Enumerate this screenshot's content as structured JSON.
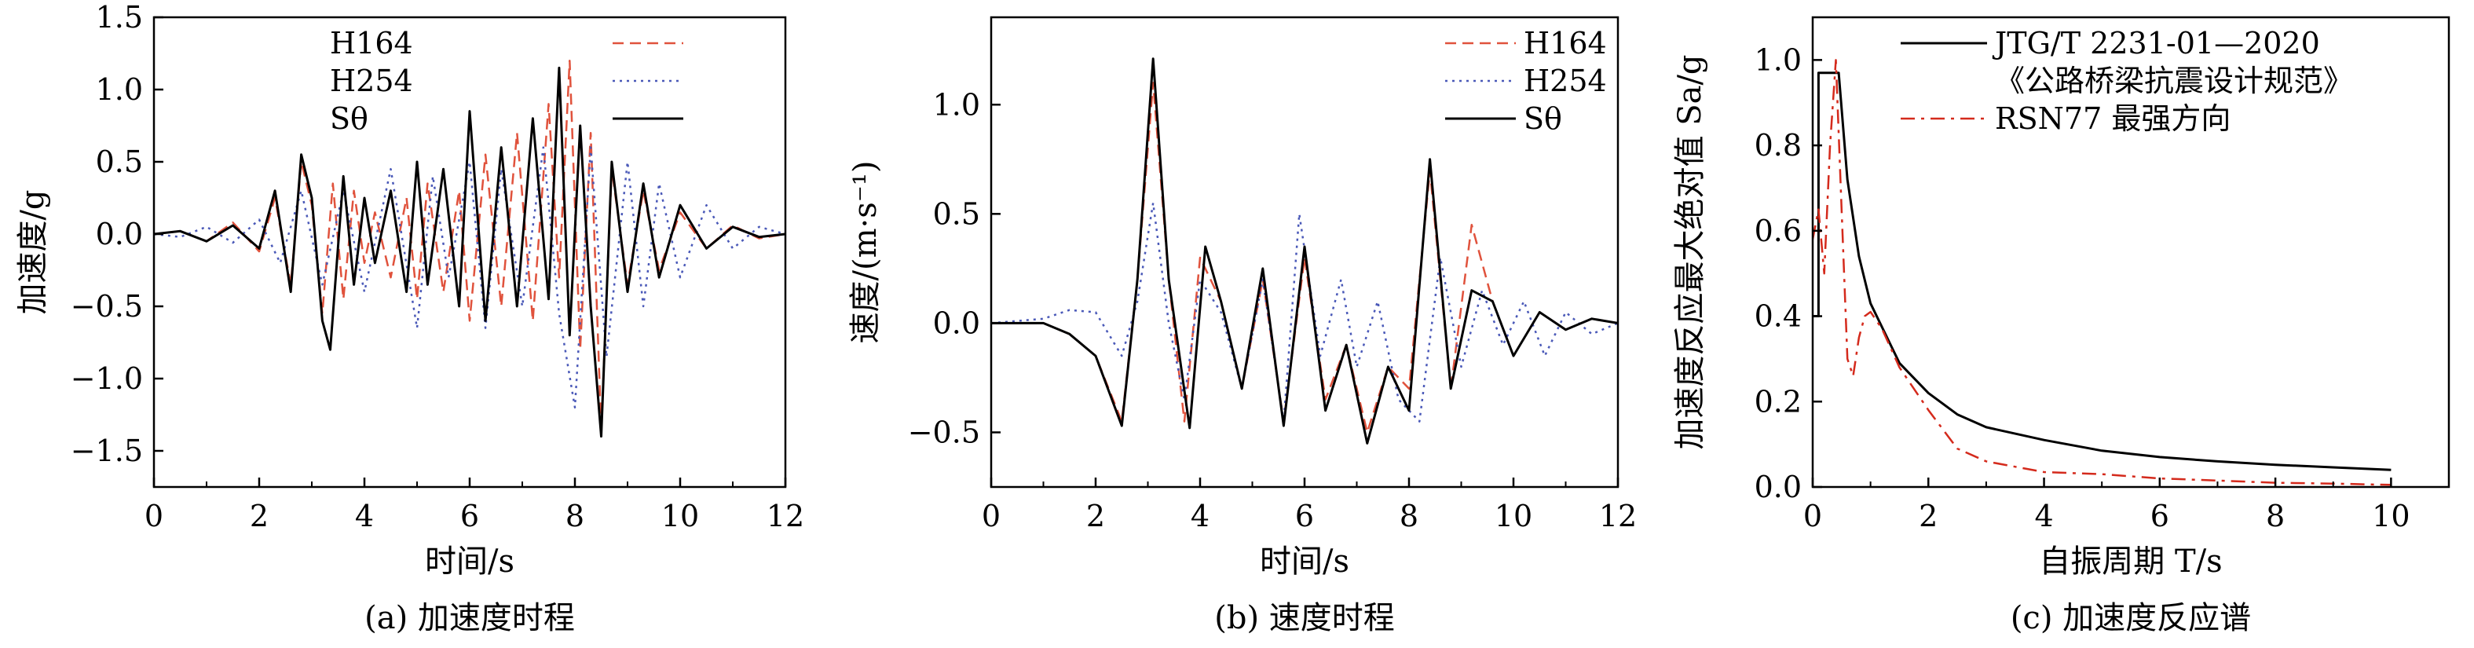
{
  "colors": {
    "h164": "#e0523c",
    "h254": "#4a59b8",
    "s": "#000000",
    "rsn77": "#d42a1c",
    "code": "#000000"
  },
  "chart_data": [
    {
      "type": "line",
      "caption": "(a) 加速度时程",
      "xlabel": "时间/s",
      "ylabel": "加速度/g",
      "xlim": [
        0,
        12
      ],
      "ylim": [
        -1.75,
        1.5
      ],
      "xticks": [
        0,
        2,
        4,
        6,
        8,
        10,
        12
      ],
      "yticks": [
        -1.5,
        -1.0,
        -0.5,
        0.0,
        0.5,
        1.0,
        1.5
      ],
      "ytick_labels": [
        "−1.5",
        "−1.0",
        "−0.5",
        "0.0",
        "0.5",
        "1.0",
        "1.5"
      ],
      "grid": false,
      "legend": "top-right",
      "series": [
        {
          "name": "H164",
          "style": "dashed",
          "color": "#e0523c",
          "x": [
            0,
            0.5,
            1.0,
            1.5,
            2.0,
            2.3,
            2.6,
            2.8,
            3.0,
            3.2,
            3.4,
            3.6,
            3.8,
            4.0,
            4.2,
            4.5,
            4.8,
            5.0,
            5.2,
            5.5,
            5.8,
            6.0,
            6.3,
            6.6,
            6.9,
            7.2,
            7.5,
            7.7,
            7.9,
            8.1,
            8.3,
            8.5,
            8.7,
            9.0,
            9.3,
            9.6,
            10.0,
            10.5,
            11.0,
            11.5,
            12.0
          ],
          "y": [
            0,
            0.02,
            -0.05,
            0.08,
            -0.12,
            0.25,
            -0.35,
            0.5,
            0.2,
            -0.55,
            0.35,
            -0.45,
            0.3,
            -0.2,
            0.15,
            -0.3,
            0.25,
            -0.45,
            0.35,
            -0.4,
            0.3,
            -0.6,
            0.55,
            -0.5,
            0.7,
            -0.6,
            0.9,
            -0.3,
            1.2,
            -0.8,
            0.7,
            -1.35,
            0.45,
            -0.35,
            0.3,
            -0.25,
            0.15,
            -0.1,
            0.06,
            -0.03,
            0
          ]
        },
        {
          "name": "H254",
          "style": "dotted",
          "color": "#4a59b8",
          "x": [
            0,
            0.5,
            1.0,
            1.5,
            2.0,
            2.4,
            2.8,
            3.2,
            3.6,
            4.0,
            4.5,
            5.0,
            5.3,
            5.6,
            6.0,
            6.3,
            6.6,
            7.0,
            7.4,
            7.7,
            8.0,
            8.3,
            8.6,
            9.0,
            9.3,
            9.6,
            10.0,
            10.5,
            11.0,
            11.5,
            12.0
          ],
          "y": [
            0,
            -0.02,
            0.05,
            -0.06,
            0.1,
            -0.2,
            0.3,
            -0.35,
            0.3,
            -0.4,
            0.45,
            -0.65,
            0.4,
            -0.3,
            0.5,
            -0.65,
            0.45,
            -0.5,
            0.6,
            -0.55,
            -1.2,
            0.6,
            -0.85,
            0.5,
            -0.5,
            0.35,
            -0.3,
            0.2,
            -0.1,
            0.05,
            0
          ]
        },
        {
          "name": "Sθ",
          "style": "solid",
          "color": "#000000",
          "x": [
            0,
            0.5,
            1.0,
            1.5,
            2.0,
            2.3,
            2.6,
            2.8,
            3.0,
            3.2,
            3.35,
            3.6,
            3.8,
            4.0,
            4.2,
            4.5,
            4.8,
            5.0,
            5.2,
            5.5,
            5.8,
            6.0,
            6.3,
            6.6,
            6.9,
            7.2,
            7.5,
            7.7,
            7.9,
            8.1,
            8.3,
            8.5,
            8.7,
            9.0,
            9.3,
            9.6,
            10.0,
            10.5,
            11.0,
            11.5,
            12.0
          ],
          "y": [
            0,
            0.02,
            -0.05,
            0.06,
            -0.1,
            0.3,
            -0.4,
            0.55,
            0.25,
            -0.6,
            -0.8,
            0.4,
            -0.35,
            0.25,
            -0.2,
            0.3,
            -0.4,
            0.5,
            -0.35,
            0.45,
            -0.5,
            0.85,
            -0.6,
            0.6,
            -0.5,
            0.8,
            -0.45,
            1.15,
            -0.7,
            0.75,
            -0.5,
            -1.4,
            0.5,
            -0.4,
            0.35,
            -0.3,
            0.2,
            -0.1,
            0.05,
            -0.02,
            0
          ]
        }
      ]
    },
    {
      "type": "line",
      "caption": "(b) 速度时程",
      "xlabel": "时间/s",
      "ylabel": "速度/(m·s⁻¹)",
      "xlim": [
        0,
        12
      ],
      "ylim": [
        -0.75,
        1.4
      ],
      "xticks": [
        0,
        2,
        4,
        6,
        8,
        10,
        12
      ],
      "yticks": [
        -0.5,
        0.0,
        0.5,
        1.0
      ],
      "ytick_labels": [
        "−0.5",
        "0.0",
        "0.5",
        "1.0"
      ],
      "grid": false,
      "legend": "top-right",
      "series": [
        {
          "name": "H164",
          "style": "dashed",
          "color": "#e0523c",
          "x": [
            0,
            1.0,
            1.5,
            2.0,
            2.5,
            2.8,
            3.1,
            3.4,
            3.7,
            4.0,
            4.4,
            4.8,
            5.2,
            5.6,
            6.0,
            6.4,
            6.8,
            7.2,
            7.6,
            8.0,
            8.4,
            8.8,
            9.2,
            9.6,
            10.0,
            10.5,
            11.0,
            11.5,
            12.0
          ],
          "y": [
            0,
            0.0,
            -0.05,
            -0.15,
            -0.45,
            0.2,
            1.1,
            0.2,
            -0.45,
            0.3,
            0.1,
            -0.3,
            0.2,
            -0.45,
            0.3,
            -0.35,
            -0.1,
            -0.5,
            -0.2,
            -0.3,
            0.7,
            -0.3,
            0.45,
            0.1,
            -0.15,
            0.05,
            -0.03,
            0.02,
            0
          ]
        },
        {
          "name": "H254",
          "style": "dotted",
          "color": "#4a59b8",
          "x": [
            0,
            1.0,
            1.5,
            2.0,
            2.5,
            2.8,
            3.1,
            3.4,
            3.7,
            4.0,
            4.4,
            4.8,
            5.2,
            5.6,
            5.9,
            6.3,
            6.7,
            7.0,
            7.4,
            7.8,
            8.2,
            8.6,
            9.0,
            9.4,
            9.8,
            10.2,
            10.6,
            11.0,
            11.5,
            12.0
          ],
          "y": [
            0,
            0.02,
            0.06,
            0.05,
            -0.15,
            0.1,
            0.55,
            0.0,
            -0.35,
            0.2,
            0.05,
            -0.3,
            0.2,
            -0.45,
            0.5,
            -0.15,
            0.2,
            -0.2,
            0.1,
            -0.35,
            -0.45,
            0.3,
            -0.2,
            0.15,
            -0.1,
            0.1,
            -0.15,
            0.05,
            -0.05,
            0
          ]
        },
        {
          "name": "Sθ",
          "style": "solid",
          "color": "#000000",
          "x": [
            0,
            1.0,
            1.5,
            2.0,
            2.5,
            2.8,
            3.1,
            3.4,
            3.8,
            4.1,
            4.4,
            4.8,
            5.2,
            5.6,
            6.0,
            6.4,
            6.8,
            7.2,
            7.6,
            8.0,
            8.4,
            8.8,
            9.2,
            9.6,
            10.0,
            10.5,
            11.0,
            11.5,
            12.0
          ],
          "y": [
            0,
            0.0,
            -0.05,
            -0.15,
            -0.47,
            0.2,
            1.21,
            0.2,
            -0.48,
            0.35,
            0.1,
            -0.3,
            0.25,
            -0.47,
            0.35,
            -0.4,
            -0.1,
            -0.55,
            -0.2,
            -0.4,
            0.75,
            -0.3,
            0.15,
            0.1,
            -0.15,
            0.05,
            -0.03,
            0.02,
            0
          ]
        }
      ]
    },
    {
      "type": "line",
      "caption": "(c) 加速度反应谱",
      "xlabel": "自振周期 T/s",
      "ylabel": "加速度反应最大绝对值 Sa/g",
      "xlim": [
        0,
        11
      ],
      "ylim": [
        0,
        1.1
      ],
      "xticks": [
        0,
        2,
        4,
        6,
        8,
        10
      ],
      "yticks": [
        0.0,
        0.2,
        0.4,
        0.6,
        0.8,
        1.0
      ],
      "ytick_labels": [
        "0.0",
        "0.2",
        "0.4",
        "0.6",
        "0.8",
        "1.0"
      ],
      "grid": false,
      "legend": "top-right",
      "series": [
        {
          "name": "JTG/T 2231-01—2020",
          "name_line2": "《公路桥梁抗震设计规范》",
          "style": "solid",
          "color": "#000000",
          "x": [
            0,
            0.1,
            0.1,
            0.45,
            0.6,
            0.8,
            1.0,
            1.5,
            2.0,
            2.5,
            3.0,
            4.0,
            5.0,
            6.0,
            7.0,
            8.0,
            9.0,
            10.0
          ],
          "y": [
            0.4,
            0.4,
            0.97,
            0.97,
            0.72,
            0.54,
            0.43,
            0.29,
            0.22,
            0.17,
            0.14,
            0.11,
            0.085,
            0.07,
            0.06,
            0.052,
            0.046,
            0.04
          ]
        },
        {
          "name": "RSN77 最强方向",
          "style": "dashdot",
          "color": "#d42a1c",
          "x": [
            0,
            0.1,
            0.2,
            0.3,
            0.4,
            0.5,
            0.6,
            0.7,
            0.8,
            0.9,
            1.0,
            1.2,
            1.5,
            2.0,
            2.5,
            3.0,
            4.0,
            5.0,
            6.0,
            7.0,
            8.0,
            9.0,
            10.0
          ],
          "y": [
            0.58,
            0.65,
            0.5,
            0.8,
            1.0,
            0.65,
            0.3,
            0.26,
            0.35,
            0.4,
            0.41,
            0.37,
            0.28,
            0.18,
            0.09,
            0.06,
            0.035,
            0.03,
            0.02,
            0.015,
            0.01,
            0.008,
            0.005
          ]
        }
      ]
    }
  ]
}
